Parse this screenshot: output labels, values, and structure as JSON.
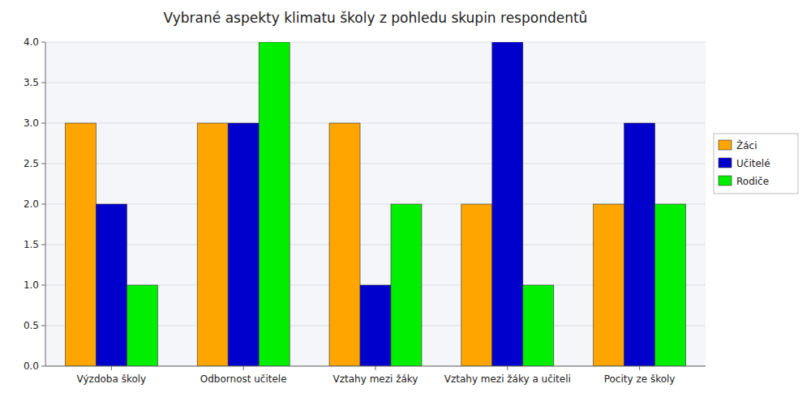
{
  "chart_data": {
    "type": "bar",
    "title": "Vybrané aspekty klimatu školy z pohledu skupin respondentů",
    "categories": [
      "Výzdoba školy",
      "Odbornost učitele",
      "Vztahy mezi žáky",
      "Vztahy mezi žáky a učiteli",
      "Pocity ze školy"
    ],
    "series": [
      {
        "name": "Žáci",
        "color": "#FFA500",
        "values": [
          3,
          3,
          3,
          2,
          2
        ]
      },
      {
        "name": "Učitelé",
        "color": "#0000CC",
        "values": [
          2,
          3,
          1,
          4,
          3
        ]
      },
      {
        "name": "Rodiče",
        "color": "#00EE00",
        "values": [
          1,
          4,
          2,
          1,
          2
        ]
      }
    ],
    "ylim": [
      0,
      4.0
    ],
    "yticks": [
      {
        "value": 0,
        "label": "0.0"
      },
      0.5,
      {
        "value": 1,
        "label": "1.0"
      },
      1.5,
      {
        "value": 2,
        "label": "2.0"
      },
      2.5,
      {
        "value": 3,
        "label": "3.0"
      },
      3.5,
      {
        "value": 4,
        "label": "4.0"
      }
    ],
    "grid": true,
    "legend": "right"
  }
}
